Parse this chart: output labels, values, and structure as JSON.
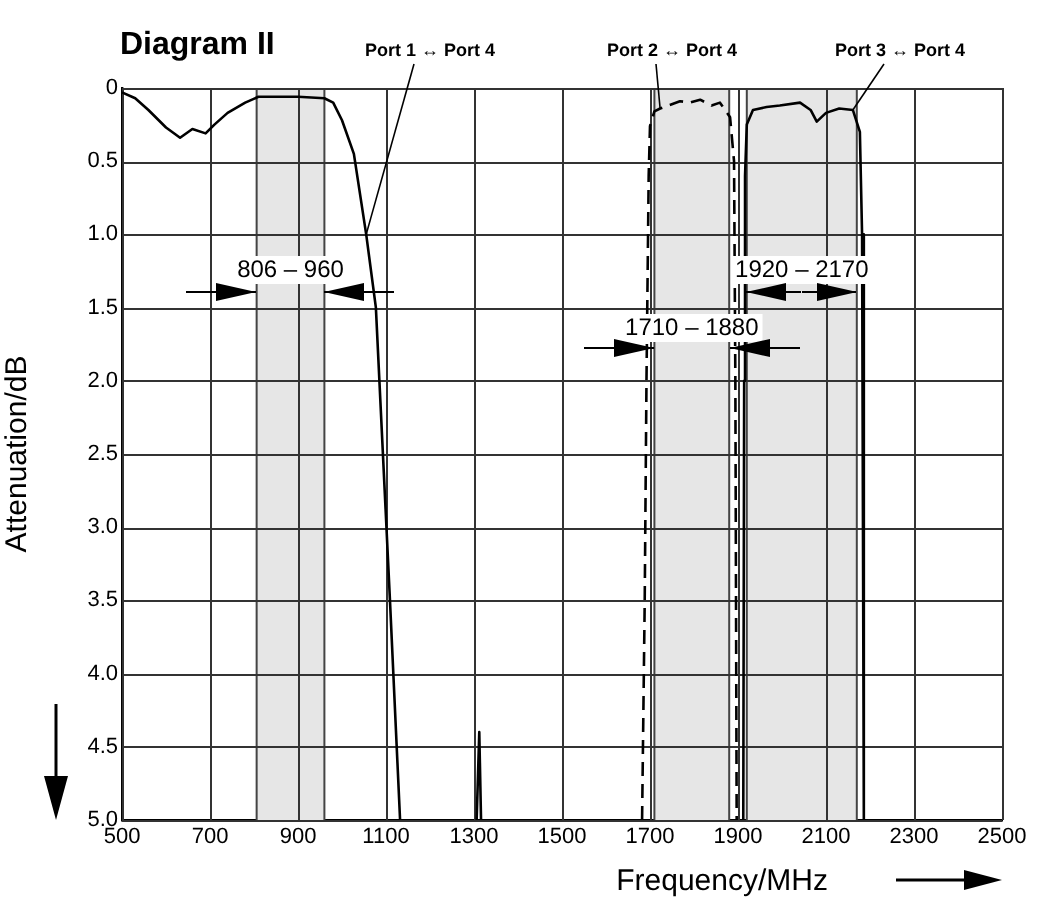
{
  "chart_data": {
    "type": "line",
    "title": "Diagram II",
    "xlabel": "Frequency/MHz",
    "ylabel": "Attenuation/dB",
    "xlim": [
      500,
      2500
    ],
    "xticks": [
      500,
      700,
      900,
      1100,
      1300,
      1500,
      1700,
      1900,
      2100,
      2300,
      2500
    ],
    "ylim": [
      5,
      0
    ],
    "yticks": [
      0,
      0.5,
      {
        "value": 1,
        "label": "1.0"
      },
      {
        "value": 1.5,
        "label": "1.5"
      },
      {
        "value": 2,
        "label": "2.0"
      },
      {
        "value": 2.5,
        "label": "2.5"
      },
      {
        "value": 3,
        "label": "3.0"
      },
      {
        "value": 3.5,
        "label": "3.5"
      },
      {
        "value": 4,
        "label": "4.0"
      },
      {
        "value": 4.5,
        "label": "4.5"
      },
      {
        "value": 5,
        "label": "5.0"
      }
    ],
    "grid": true,
    "legend": false,
    "marker": "none",
    "bands": [
      {
        "axis": "x",
        "from": 806,
        "to": 960,
        "label": "806 – 960",
        "color": "#e6e6e6"
      },
      {
        "axis": "x",
        "from": 1710,
        "to": 1880,
        "label": "1710 – 1880",
        "color": "#e6e6e6"
      },
      {
        "axis": "x",
        "from": 1920,
        "to": 2170,
        "label": "1920 – 2170",
        "color": "#e6e6e6"
      }
    ],
    "series": [
      {
        "name": "Port 1 ↔ Port 4",
        "color": "#000000",
        "line_style": "solid",
        "x": [
          500,
          530,
          560,
          600,
          632,
          660,
          690,
          710,
          740,
          780,
          810,
          900,
          960,
          980,
          1000,
          1027,
          1055,
          1077,
          1109,
          1132,
          1200,
          1306,
          1312,
          1316
        ],
        "values": [
          0.03,
          0.07,
          0.15,
          0.27,
          0.34,
          0.28,
          0.31,
          0.25,
          0.17,
          0.1,
          0.06,
          0.06,
          0.07,
          0.1,
          0.22,
          0.45,
          1.0,
          1.5,
          3.5,
          5.0,
          null,
          5.0,
          4.4,
          5.0
        ]
      },
      {
        "name": "Port 2 ↔ Port 4",
        "color": "#000000",
        "line_style": "dashed",
        "x": [
          1682,
          1688,
          1692,
          1697,
          1700,
          1710,
          1723,
          1768,
          1790,
          1814,
          1840,
          1859,
          1882,
          1891,
          1894,
          1897
        ],
        "values": [
          5.0,
          3.5,
          2.0,
          0.6,
          0.26,
          0.16,
          0.14,
          0.09,
          0.1,
          0.08,
          0.12,
          0.1,
          0.2,
          0.5,
          2.0,
          5.0
        ]
      },
      {
        "name": "Port 3 ↔ Port 4",
        "color": "#000000",
        "line_style": "solid",
        "x": [
          1912,
          1914,
          1916,
          1920,
          1934,
          1965,
          1995,
          2041,
          2065,
          2079,
          2100,
          2130,
          2161,
          2177,
          2182,
          2186
        ],
        "values": [
          5.0,
          2.0,
          0.6,
          0.25,
          0.15,
          0.13,
          0.12,
          0.1,
          0.15,
          0.23,
          0.17,
          0.14,
          0.15,
          0.3,
          1.0,
          5.0
        ]
      }
    ]
  }
}
